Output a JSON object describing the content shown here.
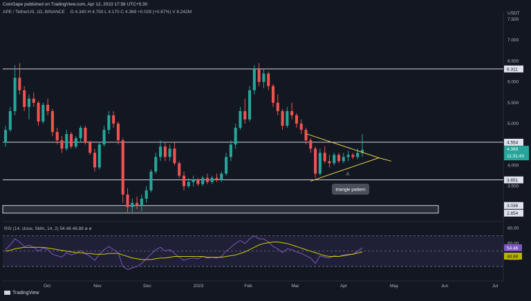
{
  "header": {
    "publisher": "CoinGape published on TradingView.com, Apr 12, 2023 17:58 UTC+5:30",
    "symbol": "APE / TetherUS, 1D, BINANCE",
    "ohlc": "O 4.340  H 4.750  L 4.170  C 4.369  +0.029 (+0.67%)  V 8.242M"
  },
  "footer": {
    "brand": "TradingView"
  },
  "rsi_label": "RSI (14, close, SMA, 14, 2)  54.46  48.88  ø  ø",
  "annotation": "triangle pattern",
  "colors": {
    "bg": "#131722",
    "up": "#26a69a",
    "down": "#ef5350",
    "level": "#d1d4dc",
    "triangle": "#e6d44c",
    "rsi": "#7e57c2",
    "rsi_ma": "#d4d000"
  },
  "chart_data": [
    {
      "type": "candlestick",
      "y_axis_unit": "USDT",
      "y_ticks": [
        "7.500",
        "7.000",
        "6.500",
        "6.000",
        "5.500",
        "5.000",
        "4.500",
        "4.000",
        "3.500"
      ],
      "x_ticks": [
        "Oct",
        "Nov",
        "Dec",
        "2023",
        "Feb",
        "Mar",
        "Apr",
        "May",
        "Jun",
        "Jul"
      ],
      "ylim": [
        2.7,
        7.6
      ],
      "levels": [
        {
          "value": 6.311,
          "label": "6.311"
        },
        {
          "value": 4.554,
          "label": "4.554"
        },
        {
          "value": 3.651,
          "label": "3.651"
        },
        {
          "value": 3.036,
          "label": "3.036"
        },
        {
          "value": 2.854,
          "label": "2.854"
        }
      ],
      "support_zone": [
        2.854,
        3.036
      ],
      "last_price": {
        "value": 4.369,
        "label": "4.369",
        "countdown": "11:31:43"
      },
      "triangle": {
        "upper": [
          [
            "2023-03-10",
            4.75
          ],
          [
            "2023-04-18",
            4.18
          ]
        ],
        "lower": [
          [
            "2023-03-13",
            3.62
          ],
          [
            "2023-04-18",
            4.18
          ]
        ]
      },
      "candles": [
        [
          4.55,
          4.95,
          4.45,
          4.85
        ],
        [
          4.85,
          5.4,
          4.8,
          5.3
        ],
        [
          5.3,
          6.4,
          5.2,
          6.1
        ],
        [
          6.1,
          6.45,
          5.7,
          5.8
        ],
        [
          5.8,
          5.9,
          5.3,
          5.4
        ],
        [
          5.4,
          5.7,
          5.1,
          5.6
        ],
        [
          5.6,
          5.75,
          5.4,
          5.5
        ],
        [
          5.5,
          5.55,
          4.95,
          5.05
        ],
        [
          5.05,
          5.5,
          5.0,
          5.45
        ],
        [
          5.45,
          5.6,
          5.2,
          5.3
        ],
        [
          5.3,
          5.35,
          4.7,
          4.8
        ],
        [
          4.8,
          4.9,
          4.5,
          4.6
        ],
        [
          4.6,
          4.7,
          4.3,
          4.4
        ],
        [
          4.4,
          4.85,
          4.35,
          4.75
        ],
        [
          4.75,
          4.8,
          4.4,
          4.45
        ],
        [
          4.45,
          4.7,
          4.4,
          4.65
        ],
        [
          4.65,
          4.95,
          4.55,
          4.9
        ],
        [
          4.9,
          4.95,
          4.5,
          4.55
        ],
        [
          4.55,
          4.6,
          4.25,
          4.3
        ],
        [
          4.3,
          4.4,
          3.85,
          3.95
        ],
        [
          3.95,
          4.55,
          3.9,
          4.5
        ],
        [
          4.5,
          4.95,
          4.45,
          4.85
        ],
        [
          4.85,
          5.3,
          4.75,
          5.2
        ],
        [
          5.2,
          5.3,
          4.9,
          5.0
        ],
        [
          5.0,
          5.05,
          4.5,
          4.6
        ],
        [
          4.6,
          4.65,
          3.1,
          3.3
        ],
        [
          3.3,
          3.45,
          2.85,
          3.0
        ],
        [
          3.0,
          3.2,
          2.85,
          3.1
        ],
        [
          3.1,
          3.25,
          2.95,
          3.05
        ],
        [
          3.05,
          3.3,
          2.9,
          3.2
        ],
        [
          3.2,
          3.5,
          3.1,
          3.4
        ],
        [
          3.4,
          3.9,
          3.35,
          3.85
        ],
        [
          3.85,
          4.3,
          3.8,
          4.2
        ],
        [
          4.2,
          4.6,
          4.1,
          4.45
        ],
        [
          4.45,
          4.55,
          4.1,
          4.2
        ],
        [
          4.2,
          4.5,
          4.1,
          4.4
        ],
        [
          4.4,
          4.55,
          4.0,
          4.05
        ],
        [
          4.05,
          4.1,
          3.7,
          3.75
        ],
        [
          3.75,
          3.85,
          3.4,
          3.5
        ],
        [
          3.5,
          3.7,
          3.45,
          3.6
        ],
        [
          3.6,
          3.75,
          3.5,
          3.65
        ],
        [
          3.65,
          3.7,
          3.5,
          3.55
        ],
        [
          3.55,
          3.75,
          3.5,
          3.7
        ],
        [
          3.7,
          3.8,
          3.55,
          3.6
        ],
        [
          3.6,
          3.75,
          3.55,
          3.7
        ],
        [
          3.7,
          3.8,
          3.6,
          3.65
        ],
        [
          3.65,
          3.85,
          3.6,
          3.8
        ],
        [
          3.8,
          4.3,
          3.75,
          4.2
        ],
        [
          4.2,
          4.6,
          4.1,
          4.5
        ],
        [
          4.5,
          5.0,
          4.4,
          4.9
        ],
        [
          4.9,
          5.4,
          4.85,
          5.3
        ],
        [
          5.3,
          5.6,
          5.0,
          5.1
        ],
        [
          5.1,
          5.9,
          5.05,
          5.8
        ],
        [
          5.8,
          6.4,
          5.7,
          6.3
        ],
        [
          6.3,
          6.45,
          5.9,
          6.0
        ],
        [
          6.0,
          6.3,
          5.85,
          6.2
        ],
        [
          6.2,
          6.25,
          5.8,
          5.9
        ],
        [
          5.9,
          5.95,
          5.4,
          5.5
        ],
        [
          5.5,
          5.7,
          5.2,
          5.3
        ],
        [
          5.3,
          5.35,
          4.85,
          4.95
        ],
        [
          4.95,
          5.4,
          4.9,
          5.3
        ],
        [
          5.3,
          5.5,
          5.1,
          5.2
        ],
        [
          5.2,
          5.25,
          4.9,
          5.0
        ],
        [
          5.0,
          5.1,
          4.75,
          4.85
        ],
        [
          4.85,
          4.9,
          4.5,
          4.6
        ],
        [
          4.6,
          4.65,
          4.3,
          4.4
        ],
        [
          4.4,
          4.45,
          3.7,
          3.8
        ],
        [
          3.8,
          4.4,
          3.75,
          4.3
        ],
        [
          4.3,
          4.45,
          4.05,
          4.1
        ],
        [
          4.1,
          4.25,
          3.95,
          4.05
        ],
        [
          4.05,
          4.3,
          4.0,
          4.25
        ],
        [
          4.25,
          4.3,
          4.05,
          4.1
        ],
        [
          4.1,
          4.3,
          4.05,
          4.2
        ],
        [
          4.2,
          4.35,
          4.1,
          4.25
        ],
        [
          4.25,
          4.3,
          4.15,
          4.2
        ],
        [
          4.2,
          4.4,
          4.15,
          4.3
        ],
        [
          4.3,
          4.75,
          4.2,
          4.37
        ]
      ]
    },
    {
      "type": "line",
      "name": "RSI (14, close, SMA, 14, 2)",
      "y_ticks": [
        "80.00",
        "60.00",
        "40.00"
      ],
      "levels": [
        70,
        50,
        30
      ],
      "last": {
        "rsi": "54.46",
        "sma": "48.88"
      },
      "ylim": [
        20,
        85
      ],
      "series": [
        {
          "name": "RSI",
          "values": [
            52,
            58,
            66,
            62,
            56,
            58,
            55,
            50,
            54,
            52,
            46,
            44,
            42,
            48,
            45,
            47,
            51,
            47,
            43,
            38,
            46,
            52,
            56,
            52,
            48,
            30,
            26,
            28,
            30,
            34,
            40,
            46,
            52,
            55,
            50,
            52,
            47,
            42,
            38,
            40,
            41,
            40,
            43,
            41,
            42,
            41,
            43,
            50,
            55,
            60,
            64,
            60,
            66,
            70,
            66,
            66,
            62,
            56,
            53,
            48,
            53,
            52,
            49,
            47,
            44,
            41,
            34,
            44,
            42,
            41,
            44,
            43,
            45,
            46,
            46,
            50,
            54.46
          ]
        },
        {
          "name": "SMA",
          "values": [
            50,
            51,
            53,
            54,
            55,
            55,
            55,
            55,
            55,
            54,
            53,
            52,
            51,
            50,
            49,
            48,
            48,
            47,
            47,
            46,
            46,
            46,
            47,
            47,
            47,
            45,
            43,
            41,
            40,
            39,
            39,
            39,
            40,
            41,
            41,
            42,
            43,
            43,
            43,
            43,
            43,
            43,
            43,
            42,
            42,
            42,
            42,
            43,
            44,
            45,
            47,
            49,
            52,
            55,
            58,
            60,
            61,
            62,
            62,
            61,
            60,
            58,
            56,
            54,
            52,
            50,
            48,
            46,
            44,
            43,
            43,
            43,
            44,
            45,
            46,
            47.5,
            48.88
          ]
        }
      ]
    }
  ]
}
